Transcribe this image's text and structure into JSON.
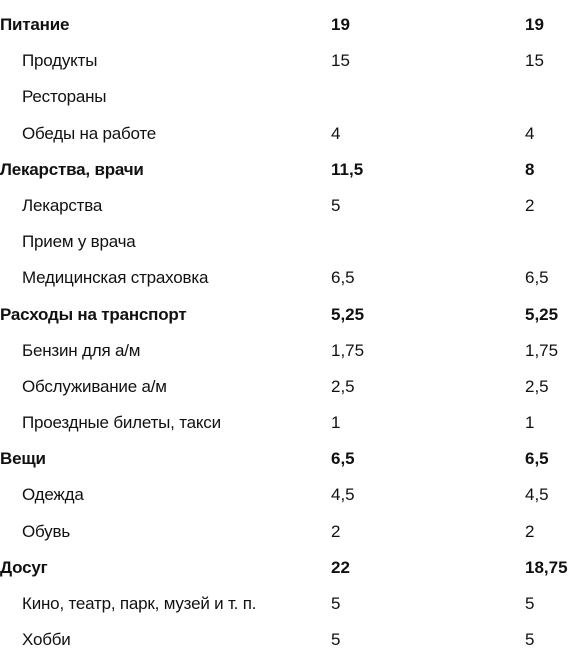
{
  "rows": [
    {
      "kind": "category",
      "label": "Питание",
      "v1": "19",
      "v2": "19"
    },
    {
      "kind": "item",
      "label": "Продукты",
      "v1": "15",
      "v2": "15"
    },
    {
      "kind": "item",
      "label": "Рестораны",
      "v1": "",
      "v2": ""
    },
    {
      "kind": "item",
      "label": "Обеды на работе",
      "v1": "4",
      "v2": "4"
    },
    {
      "kind": "category",
      "label": "Лекарства, врачи",
      "v1": "11,5",
      "v2": "8"
    },
    {
      "kind": "item",
      "label": "Лекарства",
      "v1": "5",
      "v2": "2"
    },
    {
      "kind": "item",
      "label": "Прием у врача",
      "v1": "",
      "v2": ""
    },
    {
      "kind": "item",
      "label": "Медицинская страховка",
      "v1": "6,5",
      "v2": "6,5"
    },
    {
      "kind": "category",
      "label": "Расходы на транспорт",
      "v1": "5,25",
      "v2": "5,25"
    },
    {
      "kind": "item",
      "label": "Бензин для а/м",
      "v1": "1,75",
      "v2": "1,75"
    },
    {
      "kind": "item",
      "label": "Обслуживание а/м",
      "v1": "2,5",
      "v2": "2,5"
    },
    {
      "kind": "item",
      "label": "Проездные билеты, такси",
      "v1": "1",
      "v2": "1"
    },
    {
      "kind": "category",
      "label": "Вещи",
      "v1": "6,5",
      "v2": "6,5"
    },
    {
      "kind": "item",
      "label": "Одежда",
      "v1": "4,5",
      "v2": "4,5"
    },
    {
      "kind": "item",
      "label": "Обувь",
      "v1": "2",
      "v2": "2"
    },
    {
      "kind": "category",
      "label": "Досуг",
      "v1": "22",
      "v2": "18,75"
    },
    {
      "kind": "item",
      "label": "Кино, театр, парк, музей и т. п.",
      "v1": "5",
      "v2": "5"
    },
    {
      "kind": "item",
      "label": "Хобби",
      "v1": "5",
      "v2": "5"
    }
  ]
}
